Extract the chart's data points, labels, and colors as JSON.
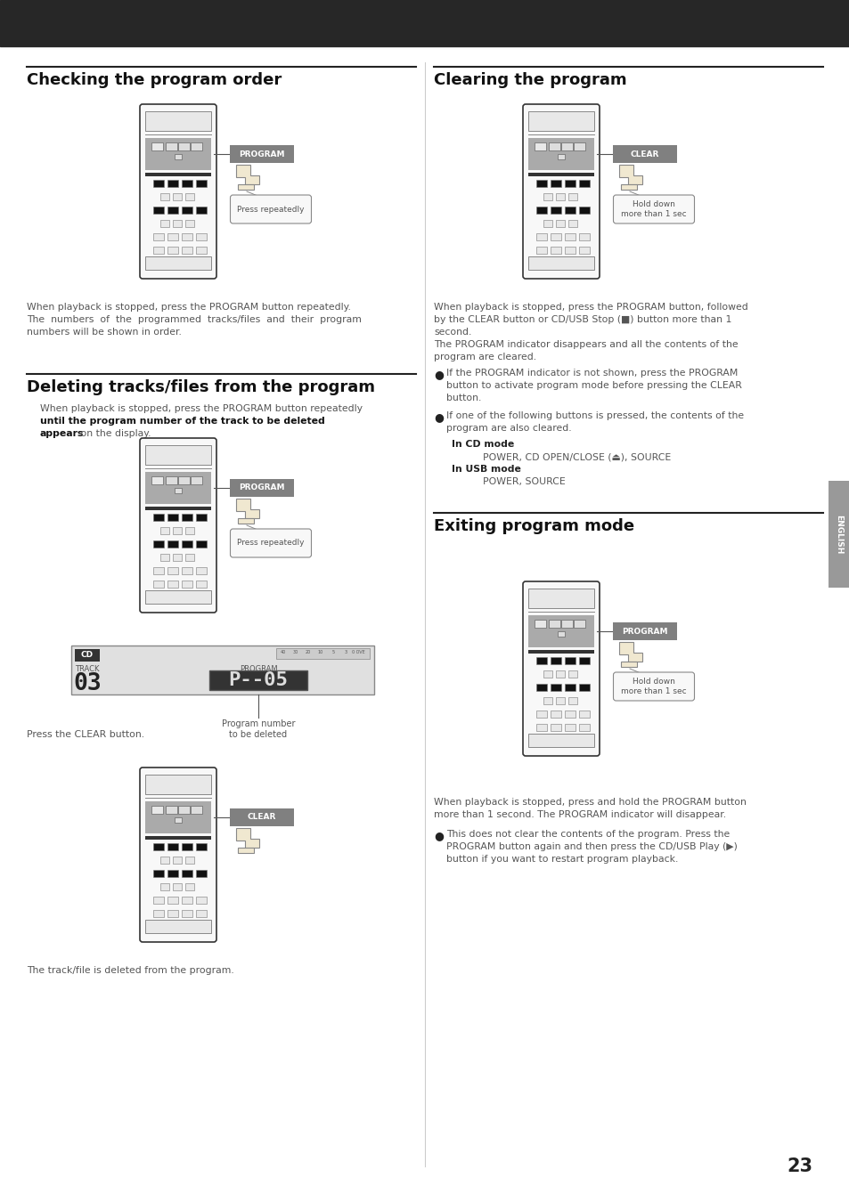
{
  "page_bg": "#ffffff",
  "header_bg": "#272727",
  "page_number": "23",
  "sections": {
    "checking": {
      "title": "Checking the program order",
      "body": "When playback is stopped, press the PROGRAM button repeatedly.\nThe  numbers  of  the  programmed  tracks/files  and  their  program\nnumbers will be shown in order.",
      "label": "PROGRAM",
      "label2": "Press repeatedly"
    },
    "deleting": {
      "title": "Deleting tracks/files from the program",
      "body1_normal": "When playback is stopped, press the PROGRAM button repeatedly",
      "body1_bold": "until the program number of the track to be deleted",
      "body1_bold2": "appears",
      "body1_normal2": " on the display.",
      "label": "PROGRAM",
      "label2": "Press repeatedly",
      "track_num": "03",
      "prog_num": "P--05",
      "body2": "Press the CLEAR button.",
      "label3": "CLEAR",
      "body3": "The track/file is deleted from the program."
    },
    "clearing": {
      "title": "Clearing the program",
      "label": "CLEAR",
      "label2": "Hold down\nmore than 1 sec",
      "body": "When playback is stopped, press the PROGRAM button, followed\nby the CLEAR button or CD/USB Stop (■) button more than 1\nsecond.\nThe PROGRAM indicator disappears and all the contents of the\nprogram are cleared.",
      "bullet1": "If the PROGRAM indicator is not shown, press the PROGRAM\nbutton to activate program mode before pressing the CLEAR\nbutton.",
      "bullet2": "If one of the following buttons is pressed, the contents of the\nprogram are also cleared.",
      "cd_header": "In CD mode",
      "cd_text": "POWER, CD OPEN/CLOSE (⏏), SOURCE",
      "usb_header": "In USB mode",
      "usb_text": "POWER, SOURCE"
    },
    "exiting": {
      "title": "Exiting program mode",
      "label": "PROGRAM",
      "label2": "Hold down\nmore than 1 sec",
      "body": "When playback is stopped, press and hold the PROGRAM button\nmore than 1 second. The PROGRAM indicator will disappear.",
      "bullet": "This does not clear the contents of the program. Press the\nPROGRAM button again and then press the CD/USB Play (▶)\nbutton if you want to restart program playback."
    }
  }
}
